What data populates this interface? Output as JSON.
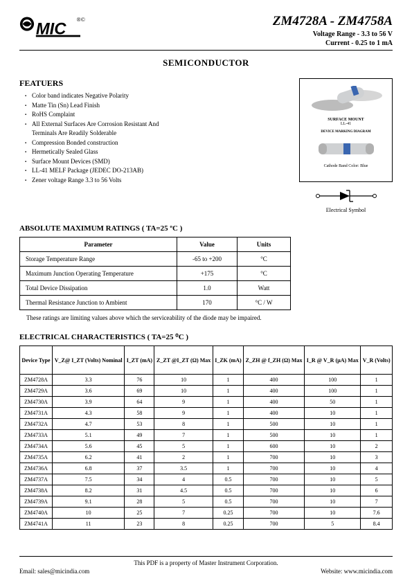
{
  "header": {
    "part_range": "ZM4728A - ZM4758A",
    "voltage_line": "Voltage Range - 3.3 to 56 V",
    "current_line": "Current - 0.25 to 1 mA"
  },
  "section_title": "SEMICONDUCTOR",
  "features": {
    "heading": "FEATUERS",
    "items": [
      "Color band indicates Negative Polarity",
      "Matte Tin (Sn) Lead Finish",
      "RoHS Complaint",
      "All External Surfaces Are Corrosion Resistant And",
      "Terminals Are Readily Solderable",
      "Compression Bonded construction",
      "Hermetically Sealed Glass",
      "Surface Mount Devices (SMD)",
      "LL-41 MELF Package (JEDEC DO-213AB)",
      "Zener voltage Range 3.3 to 56 Volts"
    ]
  },
  "diagram": {
    "label1": "SURFACE MOUNT",
    "label1b": "LL-41",
    "label2": "DEVICE MARKING DIAGRAM",
    "label3": "Cathode Band Color: Blue",
    "symbol_caption": "Electrical Symbol"
  },
  "ratings": {
    "heading": "ABSOLUTE MAXIMUM RATINGS ( TA=25 ºC )",
    "columns": [
      "Parameter",
      "Value",
      "Units"
    ],
    "rows": [
      [
        "Storage Temperature Range",
        "-65 to +200",
        "°C"
      ],
      [
        "Maximum Junction Operating Temperature",
        "+175",
        "°C"
      ],
      [
        "Total Device Dissipation",
        "1.0",
        "Watt"
      ],
      [
        "Thermal Resistance Junction to Ambient",
        "170",
        "°C / W"
      ]
    ],
    "note": "These ratings are limiting values above which the serviceability of the diode may be impaired."
  },
  "electrical": {
    "heading": "ELECTRICAL CHARACTERISTICS ( TA=25 ⁰C )",
    "columns": [
      "Device Type",
      "V_Z@ I_ZT (Volts) Nominal",
      "I_ZT (mA)",
      "Z_ZT @I_ZT (Ω) Max",
      "I_ZK (mA)",
      "Z_ZH @ f_ZH (Ω) Max",
      "I_R @ V_R (µA) Max",
      "V_R (Volts)"
    ],
    "rows": [
      [
        "ZM4728A",
        "3.3",
        "76",
        "10",
        "1",
        "400",
        "100",
        "1"
      ],
      [
        "ZM4729A",
        "3.6",
        "69",
        "10",
        "1",
        "400",
        "100",
        "1"
      ],
      [
        "ZM4730A",
        "3.9",
        "64",
        "9",
        "1",
        "400",
        "50",
        "1"
      ],
      [
        "ZM4731A",
        "4.3",
        "58",
        "9",
        "1",
        "400",
        "10",
        "1"
      ],
      [
        "ZM4732A",
        "4.7",
        "53",
        "8",
        "1",
        "500",
        "10",
        "1"
      ],
      [
        "ZM4733A",
        "5.1",
        "49",
        "7",
        "1",
        "500",
        "10",
        "1"
      ],
      [
        "ZM4734A",
        "5.6",
        "45",
        "5",
        "1",
        "600",
        "10",
        "2"
      ],
      [
        "ZM4735A",
        "6.2",
        "41",
        "2",
        "1",
        "700",
        "10",
        "3"
      ],
      [
        "ZM4736A",
        "6.8",
        "37",
        "3.5",
        "1",
        "700",
        "10",
        "4"
      ],
      [
        "ZM4737A",
        "7.5",
        "34",
        "4",
        "0.5",
        "700",
        "10",
        "5"
      ],
      [
        "ZM4738A",
        "8.2",
        "31",
        "4.5",
        "0.5",
        "700",
        "10",
        "6"
      ],
      [
        "ZM4739A",
        "9.1",
        "28",
        "5",
        "0.5",
        "700",
        "10",
        "7"
      ],
      [
        "ZM4740A",
        "10",
        "25",
        "7",
        "0.25",
        "700",
        "10",
        "7.6"
      ],
      [
        "ZM4741A",
        "11",
        "23",
        "8",
        "0.25",
        "700",
        "5",
        "8.4"
      ]
    ]
  },
  "footer": {
    "line1": "This PDF is a property of Master Instrument Corporation.",
    "email": "Email: sales@micindia.com",
    "website": "Website: www.micindia.com"
  },
  "colors": {
    "blue_band": "#3a66b0",
    "gray_body": "#cfd1d3",
    "text": "#000000"
  }
}
